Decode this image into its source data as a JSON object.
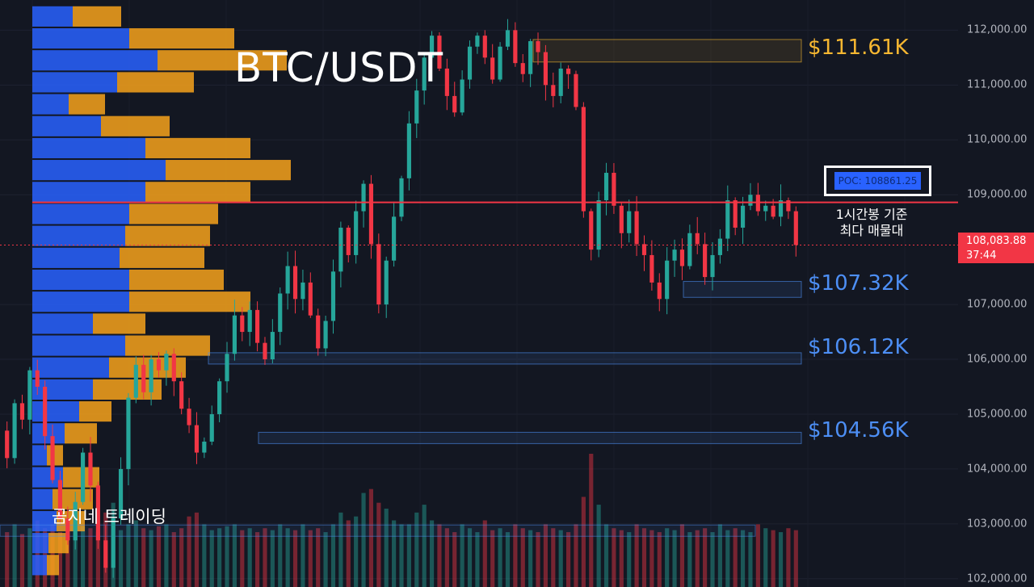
{
  "header": {
    "title": "BTC/USDT"
  },
  "watermark": "곰지네 트레이딩",
  "colors": {
    "background": "#131722",
    "bull": "#26a69a",
    "bear": "#f23645",
    "vp_up": "#2962ff",
    "vp_down": "#f7a21b",
    "poc_line": "#f23645",
    "zone_gold": "#f7b731",
    "zone_blue": "#4d8ff5"
  },
  "zones": [
    {
      "label": "$111.61K",
      "color": "#f7b731"
    },
    {
      "label": "$107.32K",
      "color": "#4d8ff5"
    },
    {
      "label": "$106.12K",
      "color": "#4d8ff5"
    },
    {
      "label": "$104.56K",
      "color": "#4d8ff5"
    }
  ],
  "poc": {
    "label": "POC: 108861.25",
    "note_line1": "1시간봉 기준",
    "note_line2": "최다 매물대"
  },
  "current_price": {
    "price": "108,083.88",
    "countdown": "37:44"
  },
  "axis": {
    "ticks": [
      "112,000.00",
      "111,000.00",
      "110,000.00",
      "109,000.00",
      "107,000.00",
      "106,000.00",
      "105,000.00",
      "104,000.00",
      "103,000.00",
      "102,000.00"
    ]
  },
  "chart_data": {
    "type": "candlestick",
    "title": "BTC/USDT",
    "timeframe": "1h",
    "ylim": [
      101850,
      112550
    ],
    "yticks": [
      102000,
      103000,
      104000,
      105000,
      106000,
      107000,
      109000,
      110000,
      111000,
      112000
    ],
    "current_price": 108083.88,
    "poc_price": 108861.25,
    "zones": [
      {
        "price": 111610,
        "low": 111420,
        "high": 111830,
        "kind": "resistance"
      },
      {
        "price": 107320,
        "low": 107130,
        "high": 107420,
        "kind": "support"
      },
      {
        "price": 106120,
        "low": 105980,
        "high": 106120,
        "kind": "support"
      },
      {
        "price": 104560,
        "low": 104500,
        "high": 104670,
        "kind": "support"
      }
    ],
    "volume_profile": {
      "rows": [
        {
          "price": 112250,
          "up": 50,
          "down": 60
        },
        {
          "price": 111850,
          "up": 120,
          "down": 130
        },
        {
          "price": 111450,
          "up": 155,
          "down": 160
        },
        {
          "price": 111050,
          "up": 105,
          "down": 95
        },
        {
          "price": 110650,
          "up": 45,
          "down": 45
        },
        {
          "price": 110250,
          "up": 85,
          "down": 85
        },
        {
          "price": 109850,
          "up": 140,
          "down": 130
        },
        {
          "price": 109450,
          "up": 165,
          "down": 155
        },
        {
          "price": 109050,
          "up": 140,
          "down": 130
        },
        {
          "price": 108650,
          "up": 120,
          "down": 110
        },
        {
          "price": 108250,
          "up": 115,
          "down": 105
        },
        {
          "price": 107850,
          "up": 108,
          "down": 105
        },
        {
          "price": 107450,
          "up": 120,
          "down": 117
        },
        {
          "price": 107050,
          "up": 120,
          "down": 150
        },
        {
          "price": 106650,
          "up": 75,
          "down": 65
        },
        {
          "price": 106250,
          "up": 115,
          "down": 105
        },
        {
          "price": 105850,
          "up": 95,
          "down": 95
        },
        {
          "price": 105450,
          "up": 75,
          "down": 85
        },
        {
          "price": 105050,
          "up": 58,
          "down": 40
        },
        {
          "price": 104650,
          "up": 40,
          "down": 40
        },
        {
          "price": 104250,
          "up": 18,
          "down": 20
        },
        {
          "price": 103850,
          "up": 38,
          "down": 45
        },
        {
          "price": 103450,
          "up": 25,
          "down": 50
        },
        {
          "price": 103050,
          "up": 30,
          "down": 35
        },
        {
          "price": 102650,
          "up": 20,
          "down": 25
        },
        {
          "price": 102250,
          "up": 18,
          "down": 15
        }
      ]
    },
    "price_path": [
      104700,
      104200,
      105200,
      104900,
      105800,
      105500,
      104600,
      103800,
      103100,
      102700,
      103400,
      104300,
      103700,
      102700,
      102200,
      103100,
      104000,
      105300,
      105900,
      105400,
      106000,
      105800,
      106100,
      105600,
      105100,
      104800,
      104300,
      104500,
      105000,
      105600,
      106100,
      106800,
      106500,
      106900,
      106300,
      106000,
      106500,
      107200,
      107700,
      107100,
      107400,
      106800,
      106200,
      106700,
      107600,
      108400,
      107900,
      108700,
      109200,
      108100,
      107000,
      107800,
      108600,
      109300,
      110300,
      110900,
      111500,
      111900,
      111300,
      110800,
      110500,
      111100,
      111700,
      111900,
      111500,
      111100,
      111700,
      112000,
      111400,
      111200,
      111800,
      111600,
      111000,
      110800,
      111300,
      111200,
      110600,
      108700,
      108000,
      108900,
      109400,
      108800,
      108300,
      108700,
      108100,
      107900,
      107400,
      107100,
      107800,
      108000,
      107700,
      108300,
      108100,
      107500,
      107900,
      108200,
      108900,
      108400,
      108800,
      109000,
      108700,
      108800,
      108600,
      108900,
      108700,
      108083.88
    ],
    "volume": [
      140,
      160,
      135,
      150,
      170,
      150,
      160,
      140,
      165,
      145,
      155,
      150,
      140,
      190,
      215,
      145,
      160,
      170,
      150,
      145,
      155,
      160,
      140,
      150,
      180,
      190,
      160,
      145,
      150,
      155,
      160,
      145,
      150,
      140,
      150,
      145,
      160,
      150,
      145,
      160,
      145,
      150,
      140,
      160,
      190,
      170,
      180,
      240,
      250,
      215,
      200,
      170,
      160,
      160,
      190,
      210,
      170,
      160,
      150,
      140,
      160,
      150,
      140,
      170,
      145,
      150,
      140,
      160,
      150,
      145,
      140,
      160,
      150,
      145,
      140,
      160,
      230,
      340,
      210,
      160,
      150,
      145,
      140,
      160,
      150,
      145,
      140,
      150,
      145,
      160,
      140,
      145,
      150,
      140,
      160,
      145,
      150,
      145,
      140,
      160,
      150,
      145,
      140,
      150,
      145,
      140
    ]
  }
}
